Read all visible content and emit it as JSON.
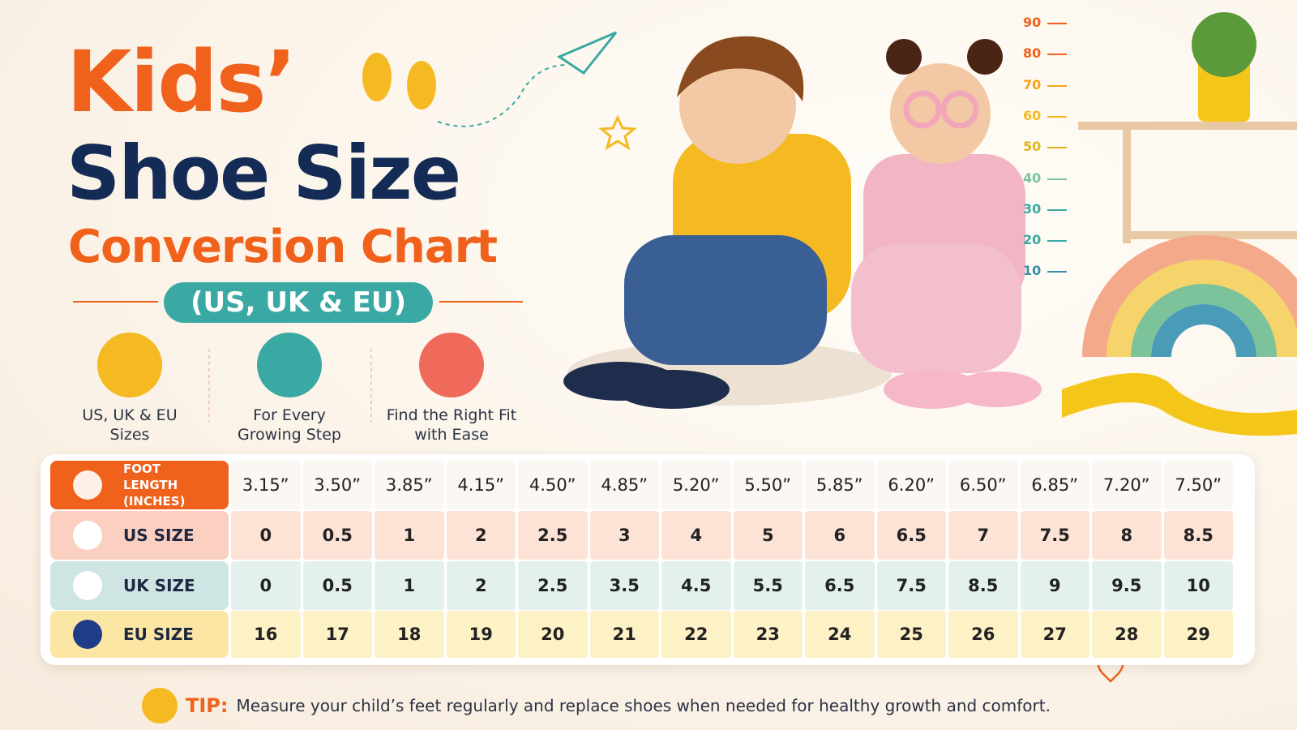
{
  "title": {
    "line1": "Kids’",
    "line2": "Shoe Size",
    "line3": "Conversion Chart",
    "subtitle": "(US, UK & EU)"
  },
  "features": [
    {
      "label": "US, UK & EU Sizes"
    },
    {
      "label": "For Every Growing Step"
    },
    {
      "label": "Find the Right Fit with Ease"
    }
  ],
  "height_ruler": [
    90,
    80,
    70,
    60,
    50,
    40,
    30,
    20,
    10
  ],
  "table": {
    "rows": [
      {
        "label": "FOOT LENGTH (INCHES)",
        "values": [
          "3.15”",
          "3.50”",
          "3.85”",
          "4.15”",
          "4.50”",
          "4.85”",
          "5.20”",
          "5.50”",
          "5.85”",
          "6.20”",
          "6.50”",
          "6.85”",
          "7.20”",
          "7.50”"
        ]
      },
      {
        "label": "US SIZE",
        "values": [
          0,
          0.5,
          1,
          2,
          2.5,
          3,
          4,
          5,
          6,
          6.5,
          7,
          7.5,
          8,
          8.5
        ]
      },
      {
        "label": "UK SIZE",
        "values": [
          0,
          0.5,
          1,
          2,
          2.5,
          3.5,
          4.5,
          5.5,
          6.5,
          7.5,
          8.5,
          9,
          9.5,
          10
        ]
      },
      {
        "label": "EU SIZE",
        "values": [
          16,
          17,
          18,
          19,
          20,
          21,
          22,
          23,
          24,
          25,
          26,
          27,
          28,
          29
        ]
      }
    ]
  },
  "tip": {
    "label": "TIP:",
    "text": "Measure your child’s feet regularly and replace shoes when needed for healthy growth and comfort."
  }
}
